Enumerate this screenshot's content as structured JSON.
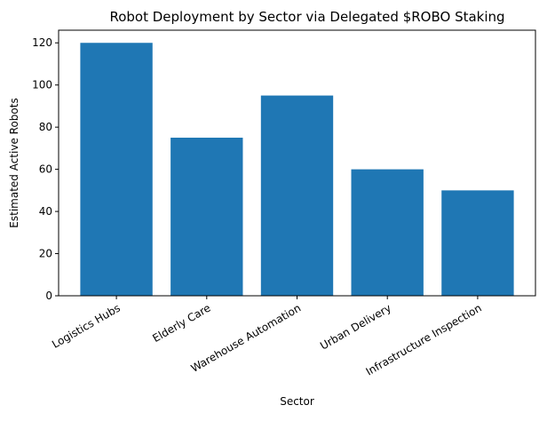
{
  "chart_data": {
    "type": "bar",
    "title": "Robot Deployment by Sector via Delegated $ROBO Staking",
    "xlabel": "Sector",
    "ylabel": "Estimated Active Robots",
    "categories": [
      "Logistics Hubs",
      "Elderly Care",
      "Warehouse Automation",
      "Urban Delivery",
      "Infrastructure Inspection"
    ],
    "values": [
      120,
      75,
      95,
      60,
      50
    ],
    "ylim": [
      0,
      126
    ],
    "yticks": [
      0,
      20,
      40,
      60,
      80,
      100,
      120
    ],
    "x_tick_rotation_deg": 30,
    "grid": false,
    "legend": "none",
    "bar_color": "#1f77b4"
  }
}
